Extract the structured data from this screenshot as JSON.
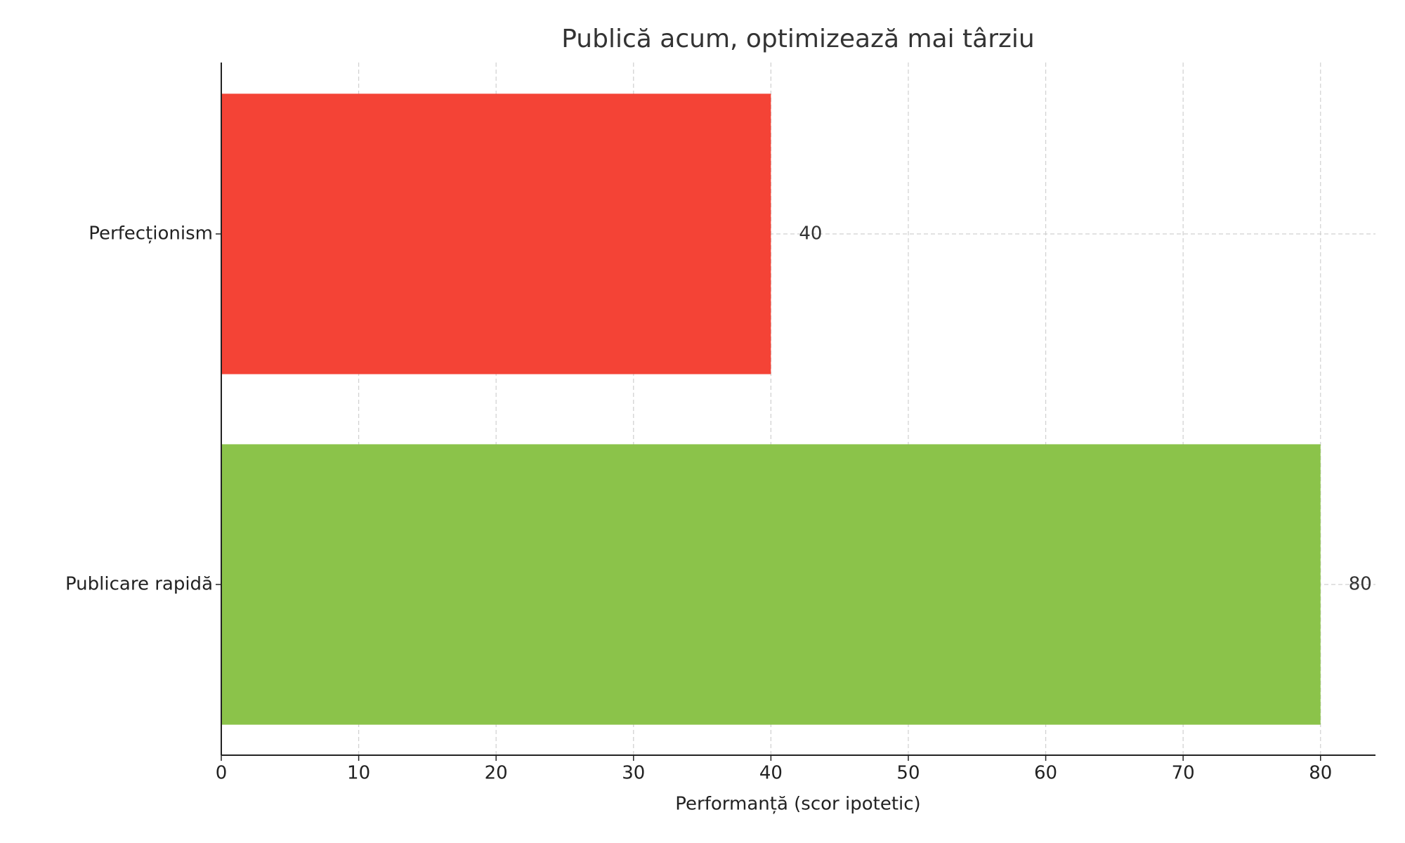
{
  "chart_data": {
    "type": "barh",
    "title": "Publică acum, optimizează mai târziu",
    "xlabel": "Performanță (scor ipotetic)",
    "categories": [
      "Perfecționism",
      "Publicare rapidă"
    ],
    "values": [
      40,
      80
    ],
    "colors": [
      "#f44336",
      "#8bc34a"
    ],
    "xlim": [
      0,
      84
    ],
    "xticks": [
      0,
      10,
      20,
      30,
      40,
      50,
      60,
      70,
      80
    ],
    "grid": true
  }
}
